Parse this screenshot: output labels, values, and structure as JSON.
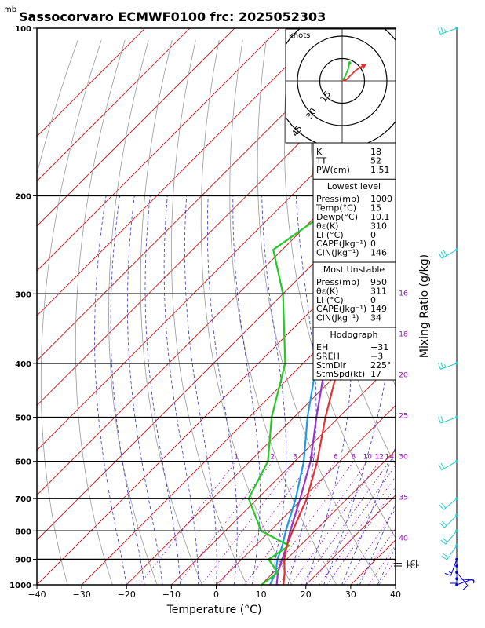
{
  "title": "Sassocorvaro ECMWF0100 frc: 2025052303",
  "pressure_unit": "mb",
  "colors": {
    "isotherm": "#cc0000",
    "dry_adiabat": "#999999",
    "moist_adiabat": "#3333cc",
    "mixing_ratio": "#9900cc",
    "temperature": "#e83030",
    "dewpoint": "#22cc22",
    "parcel": "#9933cc",
    "virtual_temp": "#1e9be6",
    "wind": "#22cccc"
  },
  "chart_data": {
    "type": "line",
    "subtype": "skew-t log-p",
    "xlabel": "Temperature (°C)",
    "ylabel": "Mixing Ratio (g/kg)",
    "xlim": [
      -40,
      40
    ],
    "ylim_pressure": [
      1000,
      100
    ],
    "x_ticks": [
      -40,
      -30,
      -20,
      -10,
      0,
      10,
      20,
      30,
      40
    ],
    "pressure_levels": [
      100,
      200,
      300,
      400,
      500,
      600,
      700,
      800,
      900,
      1000
    ],
    "mixing_ratio_labels": [
      "1",
      "2",
      "3",
      "4",
      "6",
      "8",
      "10",
      "12",
      "14",
      "16",
      "18",
      "20",
      "25",
      "30",
      "35",
      "40"
    ],
    "series": [
      {
        "role": "temperature",
        "points": [
          [
            1000,
            15
          ],
          [
            950,
            12.5
          ],
          [
            900,
            9.5
          ],
          [
            850,
            7
          ],
          [
            800,
            5
          ],
          [
            700,
            1
          ],
          [
            600,
            -5
          ],
          [
            500,
            -13
          ],
          [
            400,
            -22
          ],
          [
            300,
            -33
          ],
          [
            250,
            -40
          ],
          [
            200,
            -46
          ],
          [
            150,
            -53
          ],
          [
            100,
            -57
          ]
        ]
      },
      {
        "role": "dewpoint",
        "points": [
          [
            1000,
            10.1
          ],
          [
            950,
            11
          ],
          [
            900,
            6
          ],
          [
            850,
            7.5
          ],
          [
            800,
            -2
          ],
          [
            700,
            -12
          ],
          [
            600,
            -16
          ],
          [
            500,
            -25
          ],
          [
            400,
            -34
          ],
          [
            300,
            -50
          ],
          [
            250,
            -62
          ],
          [
            200,
            -57
          ],
          [
            150,
            -64
          ],
          [
            100,
            -70
          ]
        ]
      },
      {
        "role": "parcel",
        "points": [
          [
            1000,
            13.5
          ],
          [
            950,
            11
          ],
          [
            900,
            9
          ],
          [
            850,
            7
          ],
          [
            800,
            4.5
          ],
          [
            700,
            -0.5
          ],
          [
            600,
            -6.5
          ],
          [
            500,
            -15
          ],
          [
            400,
            -25
          ],
          [
            300,
            -40
          ],
          [
            250,
            -49
          ],
          [
            200,
            -59
          ],
          [
            150,
            -72
          ],
          [
            120,
            -80
          ]
        ]
      },
      {
        "role": "virtual temperature",
        "points": [
          [
            1000,
            12
          ],
          [
            950,
            10.5
          ],
          [
            900,
            8
          ],
          [
            850,
            6
          ],
          [
            800,
            3.5
          ],
          [
            700,
            -1.5
          ],
          [
            600,
            -8
          ],
          [
            500,
            -17
          ],
          [
            400,
            -27
          ],
          [
            300,
            -42
          ],
          [
            250,
            -51
          ],
          [
            200,
            -61
          ],
          [
            150,
            -74
          ],
          [
            120,
            -82
          ]
        ]
      }
    ],
    "lcl_labels": [
      "LCL",
      "LCL"
    ],
    "winds": [
      {
        "p": 1000,
        "dir": 70,
        "spd": 6
      },
      {
        "p": 975,
        "dir": 95,
        "spd": 8
      },
      {
        "p": 950,
        "dir": 140,
        "spd": 10
      },
      {
        "p": 925,
        "dir": 180,
        "spd": 12
      },
      {
        "p": 900,
        "dir": 200,
        "spd": 15
      },
      {
        "p": 850,
        "dir": 215,
        "spd": 20
      },
      {
        "p": 800,
        "dir": 220,
        "spd": 22
      },
      {
        "p": 750,
        "dir": 225,
        "spd": 22
      },
      {
        "p": 700,
        "dir": 230,
        "spd": 20
      },
      {
        "p": 600,
        "dir": 240,
        "spd": 22
      },
      {
        "p": 500,
        "dir": 250,
        "spd": 22
      },
      {
        "p": 400,
        "dir": 250,
        "spd": 25
      },
      {
        "p": 250,
        "dir": 240,
        "spd": 30
      },
      {
        "p": 100,
        "dir": 250,
        "spd": 25
      }
    ],
    "hodograph": {
      "unit_label": "knots",
      "rings": [
        "15",
        "30",
        "45"
      ],
      "trace": [
        [
          0,
          0
        ],
        [
          3,
          1
        ],
        [
          6,
          4
        ],
        [
          9,
          7
        ],
        [
          12,
          9
        ],
        [
          16,
          11
        ]
      ],
      "green_trace": [
        [
          0,
          0
        ],
        [
          2,
          3
        ],
        [
          4,
          8
        ],
        [
          5,
          12
        ]
      ]
    }
  },
  "indices": {
    "top": [
      [
        "K",
        "18"
      ],
      [
        "TT",
        "52"
      ],
      [
        "PW(cm)",
        "1.51"
      ]
    ],
    "lowest_title": "Lowest level",
    "lowest": [
      [
        "Press(mb)",
        "1000"
      ],
      [
        "Temp(°C)",
        "15"
      ],
      [
        "Dewp(°C)",
        "10.1"
      ],
      [
        "θε(K)",
        "310"
      ],
      [
        "LI (°C)",
        "0"
      ],
      [
        "CAPE(Jkg⁻¹)",
        "0"
      ],
      [
        "CIN(Jkg⁻¹)",
        "146"
      ]
    ],
    "unstable_title": "Most Unstable",
    "unstable": [
      [
        "Press(mb)",
        "950"
      ],
      [
        "θε(K)",
        "311"
      ],
      [
        "LI (°C)",
        "0"
      ],
      [
        "CAPE(Jkg⁻¹)",
        "149"
      ],
      [
        "CIN(Jkg⁻¹)",
        "34"
      ]
    ],
    "hodo_title": "Hodograph",
    "hodo": [
      [
        "EH",
        "−31"
      ],
      [
        "SREH",
        "−3"
      ],
      [
        "StmDir",
        "225°"
      ],
      [
        "StmSpd(kt)",
        "17"
      ]
    ]
  }
}
